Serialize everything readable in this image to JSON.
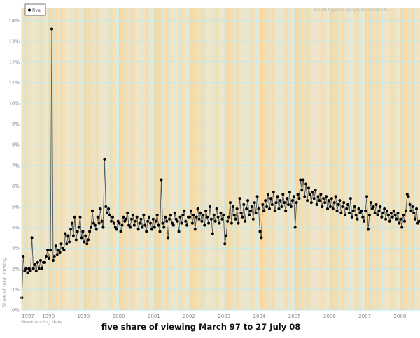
{
  "chart_data": {
    "type": "line",
    "title": "five share of viewing March 97 to 27 July 08",
    "xlabel": "Week ending date",
    "ylabel": "Share of total viewing",
    "credit": "BARB figures, graph by ukfree.tv",
    "legend": {
      "position": "top-left",
      "entries": [
        "five"
      ]
    },
    "ylim": [
      0,
      14
    ],
    "y_ticks": [
      "0%",
      "1%",
      "2%",
      "3%",
      "4%",
      "5%",
      "6%",
      "7%",
      "8%",
      "9%",
      "10%",
      "11%",
      "12%",
      "13%",
      "14%"
    ],
    "x_ticks": [
      "1997",
      "1998",
      "1999",
      "2000",
      "2001",
      "2002",
      "2003",
      "2004",
      "2005",
      "2006",
      "2007",
      "2008"
    ],
    "xlim": [
      "March 1997",
      "27 July 2008"
    ],
    "grid": true,
    "colors": {
      "line": "#555555",
      "marker": "#000000",
      "grid": "#bfe9ee"
    },
    "series": [
      {
        "name": "five",
        "values_by_year": {
          "1997": [
            0.6,
            2.6,
            1.9,
            2.0,
            1.8,
            2.0,
            1.9,
            3.5,
            2.0,
            2.2,
            1.9,
            2.3,
            2.0,
            2.4,
            2.0,
            2.3,
            2.3,
            2.6,
            2.9
          ],
          "1998": [
            2.5,
            2.9,
            13.6,
            2.4,
            2.6,
            3.1,
            2.7,
            2.9,
            2.8,
            3.2,
            3.0,
            2.9,
            3.7,
            3.2,
            3.6,
            3.3,
            3.9,
            4.2,
            3.6,
            4.5,
            3.4,
            3.8,
            4.0,
            4.5,
            3.5,
            3.8
          ],
          "1999": [
            3.3,
            3.6,
            3.2,
            3.4,
            3.8,
            4.0,
            4.8,
            4.2,
            4.1,
            3.9,
            4.5,
            4.2,
            4.9,
            4.3,
            4.0,
            7.3,
            5.0,
            4.7,
            4.9,
            4.6,
            4.3,
            4.5,
            4.2,
            4.0,
            3.9,
            4.3
          ],
          "2000": [
            4.2,
            3.8,
            4.1,
            4.5,
            4.3,
            4.4,
            4.7,
            4.1,
            4.0,
            4.4,
            4.6,
            4.1,
            4.3,
            4.5,
            3.9,
            4.2,
            4.4,
            4.0,
            4.6,
            4.1,
            3.8,
            4.3,
            4.5,
            4.2,
            3.9,
            4.4
          ],
          "2001": [
            4.0,
            4.3,
            4.6,
            4.1,
            3.8,
            6.3,
            4.2,
            4.0,
            4.5,
            4.3,
            3.5,
            4.4,
            4.6,
            4.2,
            4.1,
            4.7,
            4.4,
            4.3,
            3.8,
            4.5,
            4.2,
            4.6,
            4.8,
            4.3,
            4.1,
            4.5
          ],
          "2002": [
            4.5,
            4.8,
            4.2,
            4.6,
            3.9,
            4.5,
            4.9,
            4.4,
            4.7,
            4.3,
            4.6,
            4.1,
            4.8,
            4.5,
            4.2,
            5.0,
            4.4,
            3.7,
            4.6,
            4.3,
            4.9,
            4.5,
            4.2,
            4.7,
            4.4,
            4.6
          ],
          "2003": [
            3.2,
            3.6,
            4.3,
            4.5,
            5.2,
            4.2,
            5.0,
            4.6,
            4.4,
            4.9,
            4.2,
            5.4,
            4.7,
            4.5,
            5.1,
            4.3,
            4.9,
            5.3,
            4.6,
            4.8,
            5.0,
            4.4,
            5.2,
            4.7,
            5.5,
            4.9
          ],
          "2004": [
            3.8,
            3.5,
            5.1,
            4.8,
            5.3,
            5.0,
            5.6,
            4.9,
            5.4,
            5.1,
            5.7,
            4.8,
            5.2,
            5.5,
            4.9,
            5.3,
            5.0,
            5.6,
            5.2,
            4.8,
            5.4,
            5.1,
            5.7,
            5.0,
            5.3,
            5.5
          ],
          "2005": [
            4.0,
            5.2,
            5.6,
            5.4,
            6.3,
            5.8,
            6.3,
            5.5,
            6.1,
            5.3,
            5.9,
            5.6,
            5.2,
            5.7,
            5.4,
            5.8,
            5.1,
            5.5,
            5.3,
            5.6,
            5.0,
            5.4,
            5.2,
            5.5,
            4.9,
            5.3
          ],
          "2006": [
            5.0,
            5.4,
            4.9,
            5.2,
            5.5,
            4.8,
            5.1,
            5.3,
            4.7,
            5.0,
            5.2,
            4.6,
            4.9,
            5.1,
            4.7,
            5.4,
            4.5,
            4.8,
            5.0,
            4.6,
            4.4,
            4.9,
            4.7,
            4.8,
            4.5,
            4.3
          ],
          "2007": [
            4.8,
            5.5,
            3.9,
            4.6,
            5.2,
            4.9,
            5.0,
            4.7,
            5.1,
            4.6,
            4.8,
            5.0,
            4.5,
            4.7,
            4.9,
            4.4,
            4.8,
            4.6,
            4.3,
            4.7,
            4.5,
            4.8,
            4.6,
            4.4,
            4.7,
            4.2
          ],
          "2008": [
            4.4,
            4.0,
            4.6,
            4.3,
            4.8,
            5.6,
            5.5,
            5.1,
            4.8,
            5.0,
            4.7,
            4.4,
            4.9,
            4.2,
            4.3
          ]
        }
      }
    ]
  }
}
